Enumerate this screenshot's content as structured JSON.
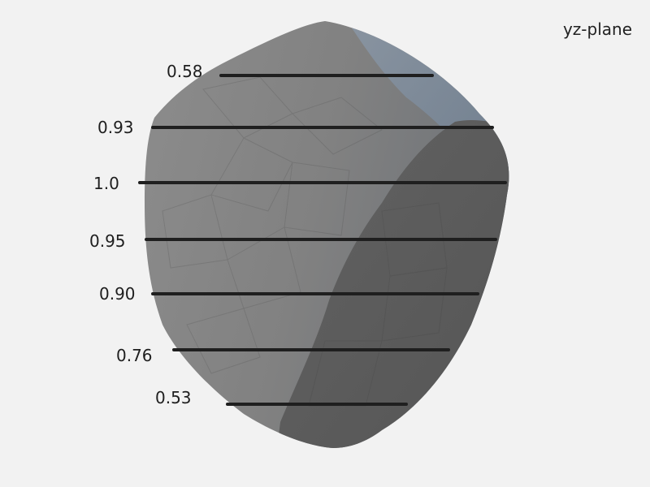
{
  "plane_label": "yz-plane",
  "slices": [
    {
      "label": "0.58"
    },
    {
      "label": "0.93"
    },
    {
      "label": "1.0"
    },
    {
      "label": "0.95"
    },
    {
      "label": "0.90"
    },
    {
      "label": "0.76"
    },
    {
      "label": "0.53"
    }
  ],
  "colors": {
    "background": "#f2f2f2",
    "body_light": "#8a8a8a",
    "body_shadow": "#5a5a5a",
    "edge_tint": "#7f93a8",
    "slice_line": "#1f1f1f"
  }
}
